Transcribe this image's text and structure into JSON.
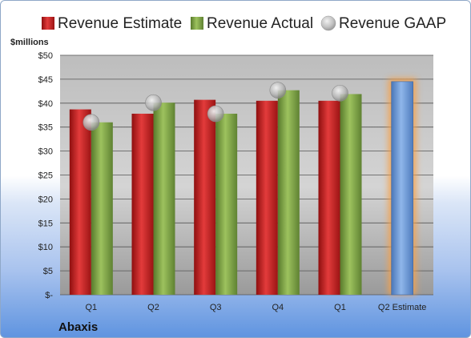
{
  "chart_data": {
    "type": "bar",
    "company": "Abaxis",
    "ylabel": "$millions",
    "ylim": [
      0,
      50
    ],
    "ytick_labels": [
      "$-",
      "$5",
      "$10",
      "$15",
      "$20",
      "$25",
      "$30",
      "$35",
      "$40",
      "$45",
      "$50"
    ],
    "categories": [
      "Q1",
      "Q2",
      "Q3",
      "Q4",
      "Q1",
      "Q2 Estimate"
    ],
    "series": [
      {
        "name": "Revenue Estimate",
        "kind": "bar",
        "values": [
          38.7,
          37.8,
          40.7,
          40.5,
          40.5,
          null
        ],
        "color": "#cc1f1f"
      },
      {
        "name": "Revenue Actual",
        "kind": "bar",
        "values": [
          36.0,
          40.1,
          37.8,
          42.7,
          41.9,
          null
        ],
        "color": "#7fa845"
      },
      {
        "name": "Revenue GAAP",
        "kind": "marker",
        "values": [
          36.0,
          40.1,
          37.8,
          42.7,
          42.1,
          null
        ],
        "color": "#b0b0b0"
      },
      {
        "name": "Q2 Estimate",
        "kind": "bar",
        "values": [
          null,
          null,
          null,
          null,
          null,
          44.5
        ],
        "color": "#6f9bd8"
      }
    ],
    "grid": true,
    "legend_position": "top"
  }
}
